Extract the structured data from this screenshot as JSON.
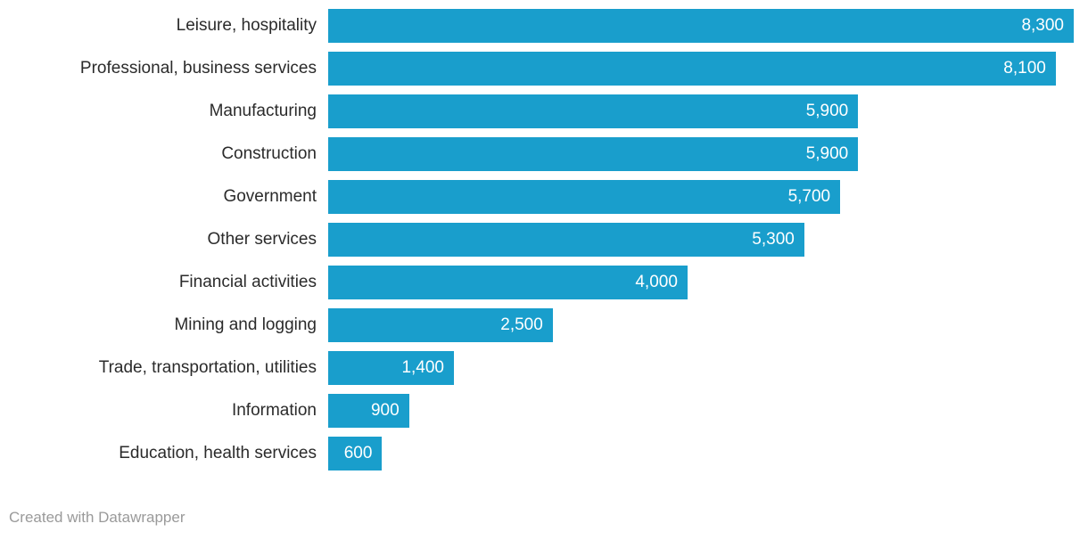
{
  "chart_data": {
    "type": "bar",
    "orientation": "horizontal",
    "title": "",
    "xlabel": "",
    "ylabel": "",
    "xlim": [
      0,
      8300
    ],
    "grid": false,
    "legend": "none",
    "bar_color": "#199ecc",
    "category_label_color": "#2b2b2b",
    "value_label_color": "#ffffff",
    "categories": [
      "Leisure, hospitality",
      "Professional, business services",
      "Manufacturing",
      "Construction",
      "Government",
      "Other services",
      "Financial activities",
      "Mining and logging",
      "Trade, transportation, utilities",
      "Information",
      "Education, health services"
    ],
    "values": [
      8300,
      8100,
      5900,
      5900,
      5700,
      5300,
      4000,
      2500,
      1400,
      900,
      600
    ],
    "value_labels": [
      "8,300",
      "8,100",
      "5,900",
      "5,900",
      "5,700",
      "5,300",
      "4,000",
      "2,500",
      "1,400",
      "900",
      "600"
    ]
  },
  "footer": {
    "attribution": "Created with Datawrapper",
    "color": "#9a9a9a"
  }
}
